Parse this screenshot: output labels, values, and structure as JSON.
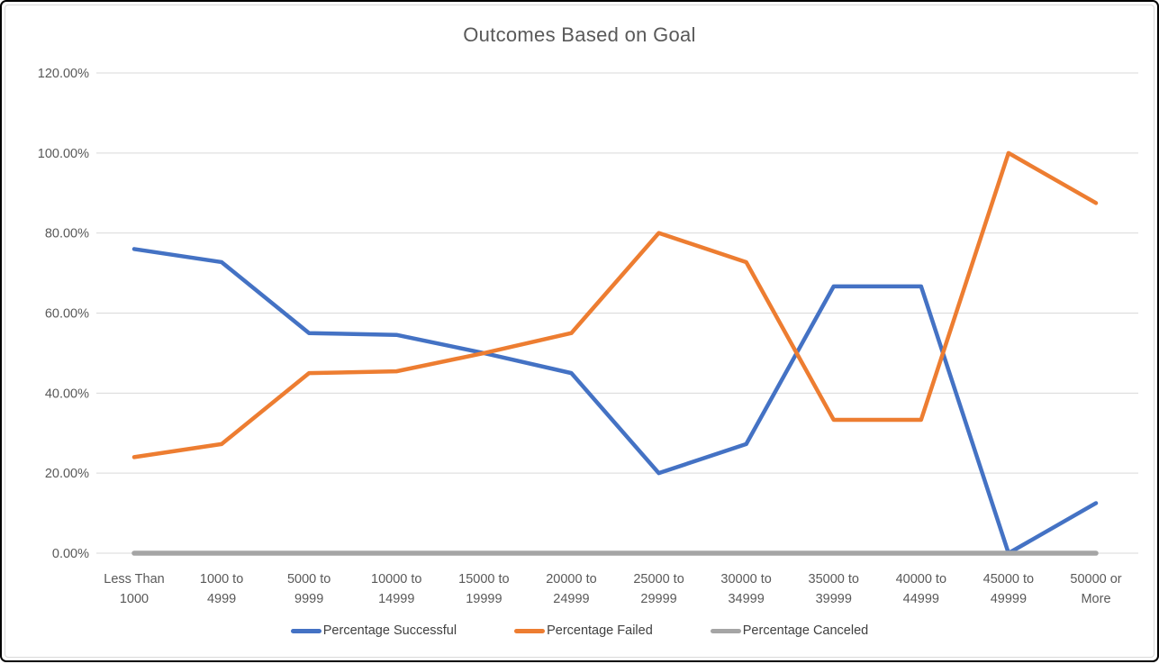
{
  "chart_data": {
    "type": "line",
    "title": "Outcomes Based on Goal",
    "categories": [
      "Less Than 1000",
      "1000 to 4999",
      "5000 to 9999",
      "10000 to 14999",
      "15000 to 19999",
      "20000 to 24999",
      "25000 to 29999",
      "30000 to 34999",
      "35000 to 39999",
      "40000 to 44999",
      "45000 to 49999",
      "50000 or More"
    ],
    "y_tick_labels": [
      "0.00%",
      "20.00%",
      "40.00%",
      "60.00%",
      "80.00%",
      "100.00%",
      "120.00%"
    ],
    "ylim": [
      0,
      120
    ],
    "y_step": 20,
    "grid": true,
    "legend_position": "bottom",
    "series": [
      {
        "name": "Percentage Successful",
        "color": "#4472C4",
        "stroke_width": 4.5,
        "values": [
          76.0,
          72.73,
          55.0,
          54.55,
          50.0,
          45.0,
          20.0,
          27.27,
          66.67,
          66.67,
          0.0,
          12.5
        ]
      },
      {
        "name": "Percentage Failed",
        "color": "#ED7D31",
        "stroke_width": 4.5,
        "values": [
          24.0,
          27.27,
          45.0,
          45.45,
          50.0,
          55.0,
          80.0,
          72.73,
          33.33,
          33.33,
          100.0,
          87.5
        ]
      },
      {
        "name": "Percentage Canceled",
        "color": "#A5A5A5",
        "stroke_width": 5.5,
        "values": [
          0,
          0,
          0,
          0,
          0,
          0,
          0,
          0,
          0,
          0,
          0,
          0
        ]
      }
    ],
    "colors": {
      "gridline": "#D9D9D9",
      "axis_label": "#595959",
      "title": "#595959",
      "legend_text": "#404040"
    }
  }
}
